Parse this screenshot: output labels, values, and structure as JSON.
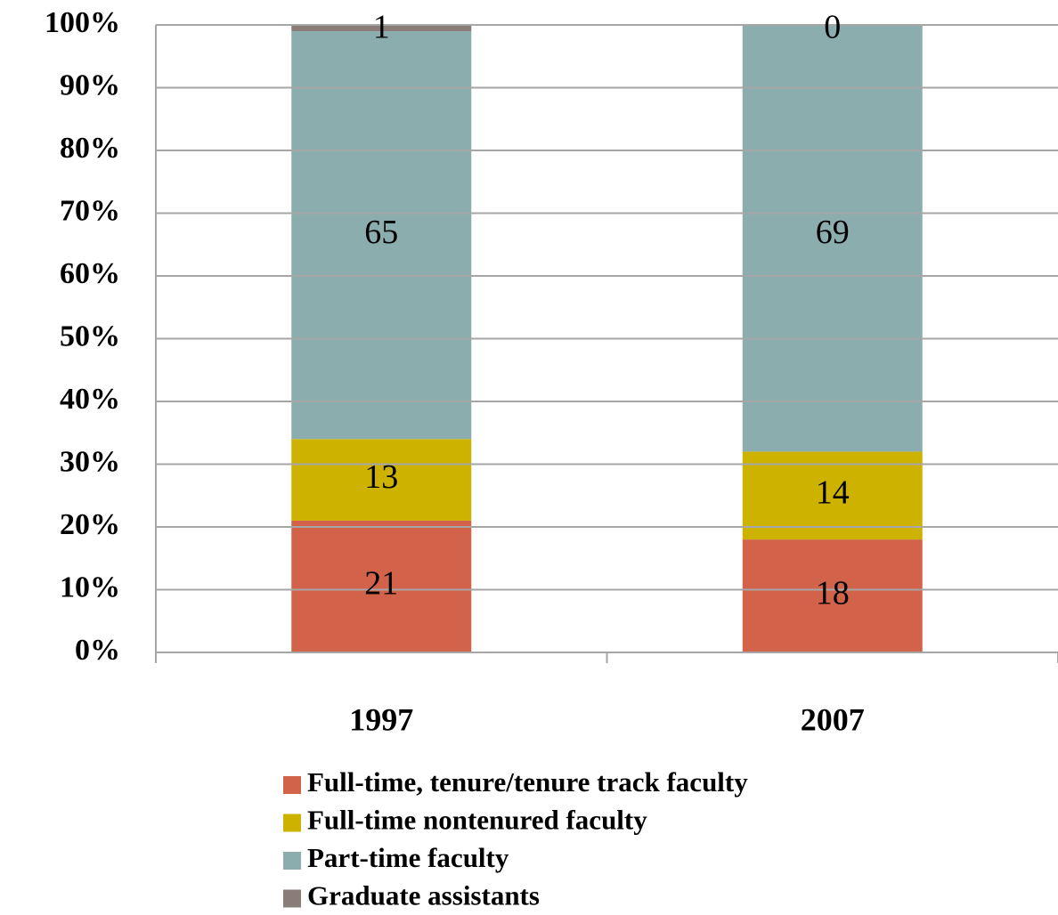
{
  "chart_data": {
    "type": "stacked_bar",
    "categories": [
      "1997",
      "2007"
    ],
    "series": [
      {
        "name": "Full-time, tenure/tenure track faculty",
        "color": "#d2634a",
        "values": [
          21,
          18
        ]
      },
      {
        "name": "Full-time nontenured faculty",
        "color": "#cdb200",
        "values": [
          13,
          14
        ]
      },
      {
        "name": "Part-time faculty",
        "color": "#8badae",
        "values": [
          65,
          69
        ]
      },
      {
        "name": "Graduate assistants",
        "color": "#8a7c78",
        "values": [
          1,
          0
        ]
      }
    ],
    "ylim": [
      0,
      100
    ],
    "yticks": [
      {
        "value": 0,
        "label": "0%"
      },
      {
        "value": 10,
        "label": "10%"
      },
      {
        "value": 20,
        "label": "20%"
      },
      {
        "value": 30,
        "label": "30%"
      },
      {
        "value": 40,
        "label": "40%"
      },
      {
        "value": 50,
        "label": "50%"
      },
      {
        "value": 60,
        "label": "60%"
      },
      {
        "value": 70,
        "label": "70%"
      },
      {
        "value": 80,
        "label": "80%"
      },
      {
        "value": 90,
        "label": "90%"
      },
      {
        "value": 100,
        "label": "100%"
      }
    ],
    "grid": true,
    "legend": "bottom"
  }
}
